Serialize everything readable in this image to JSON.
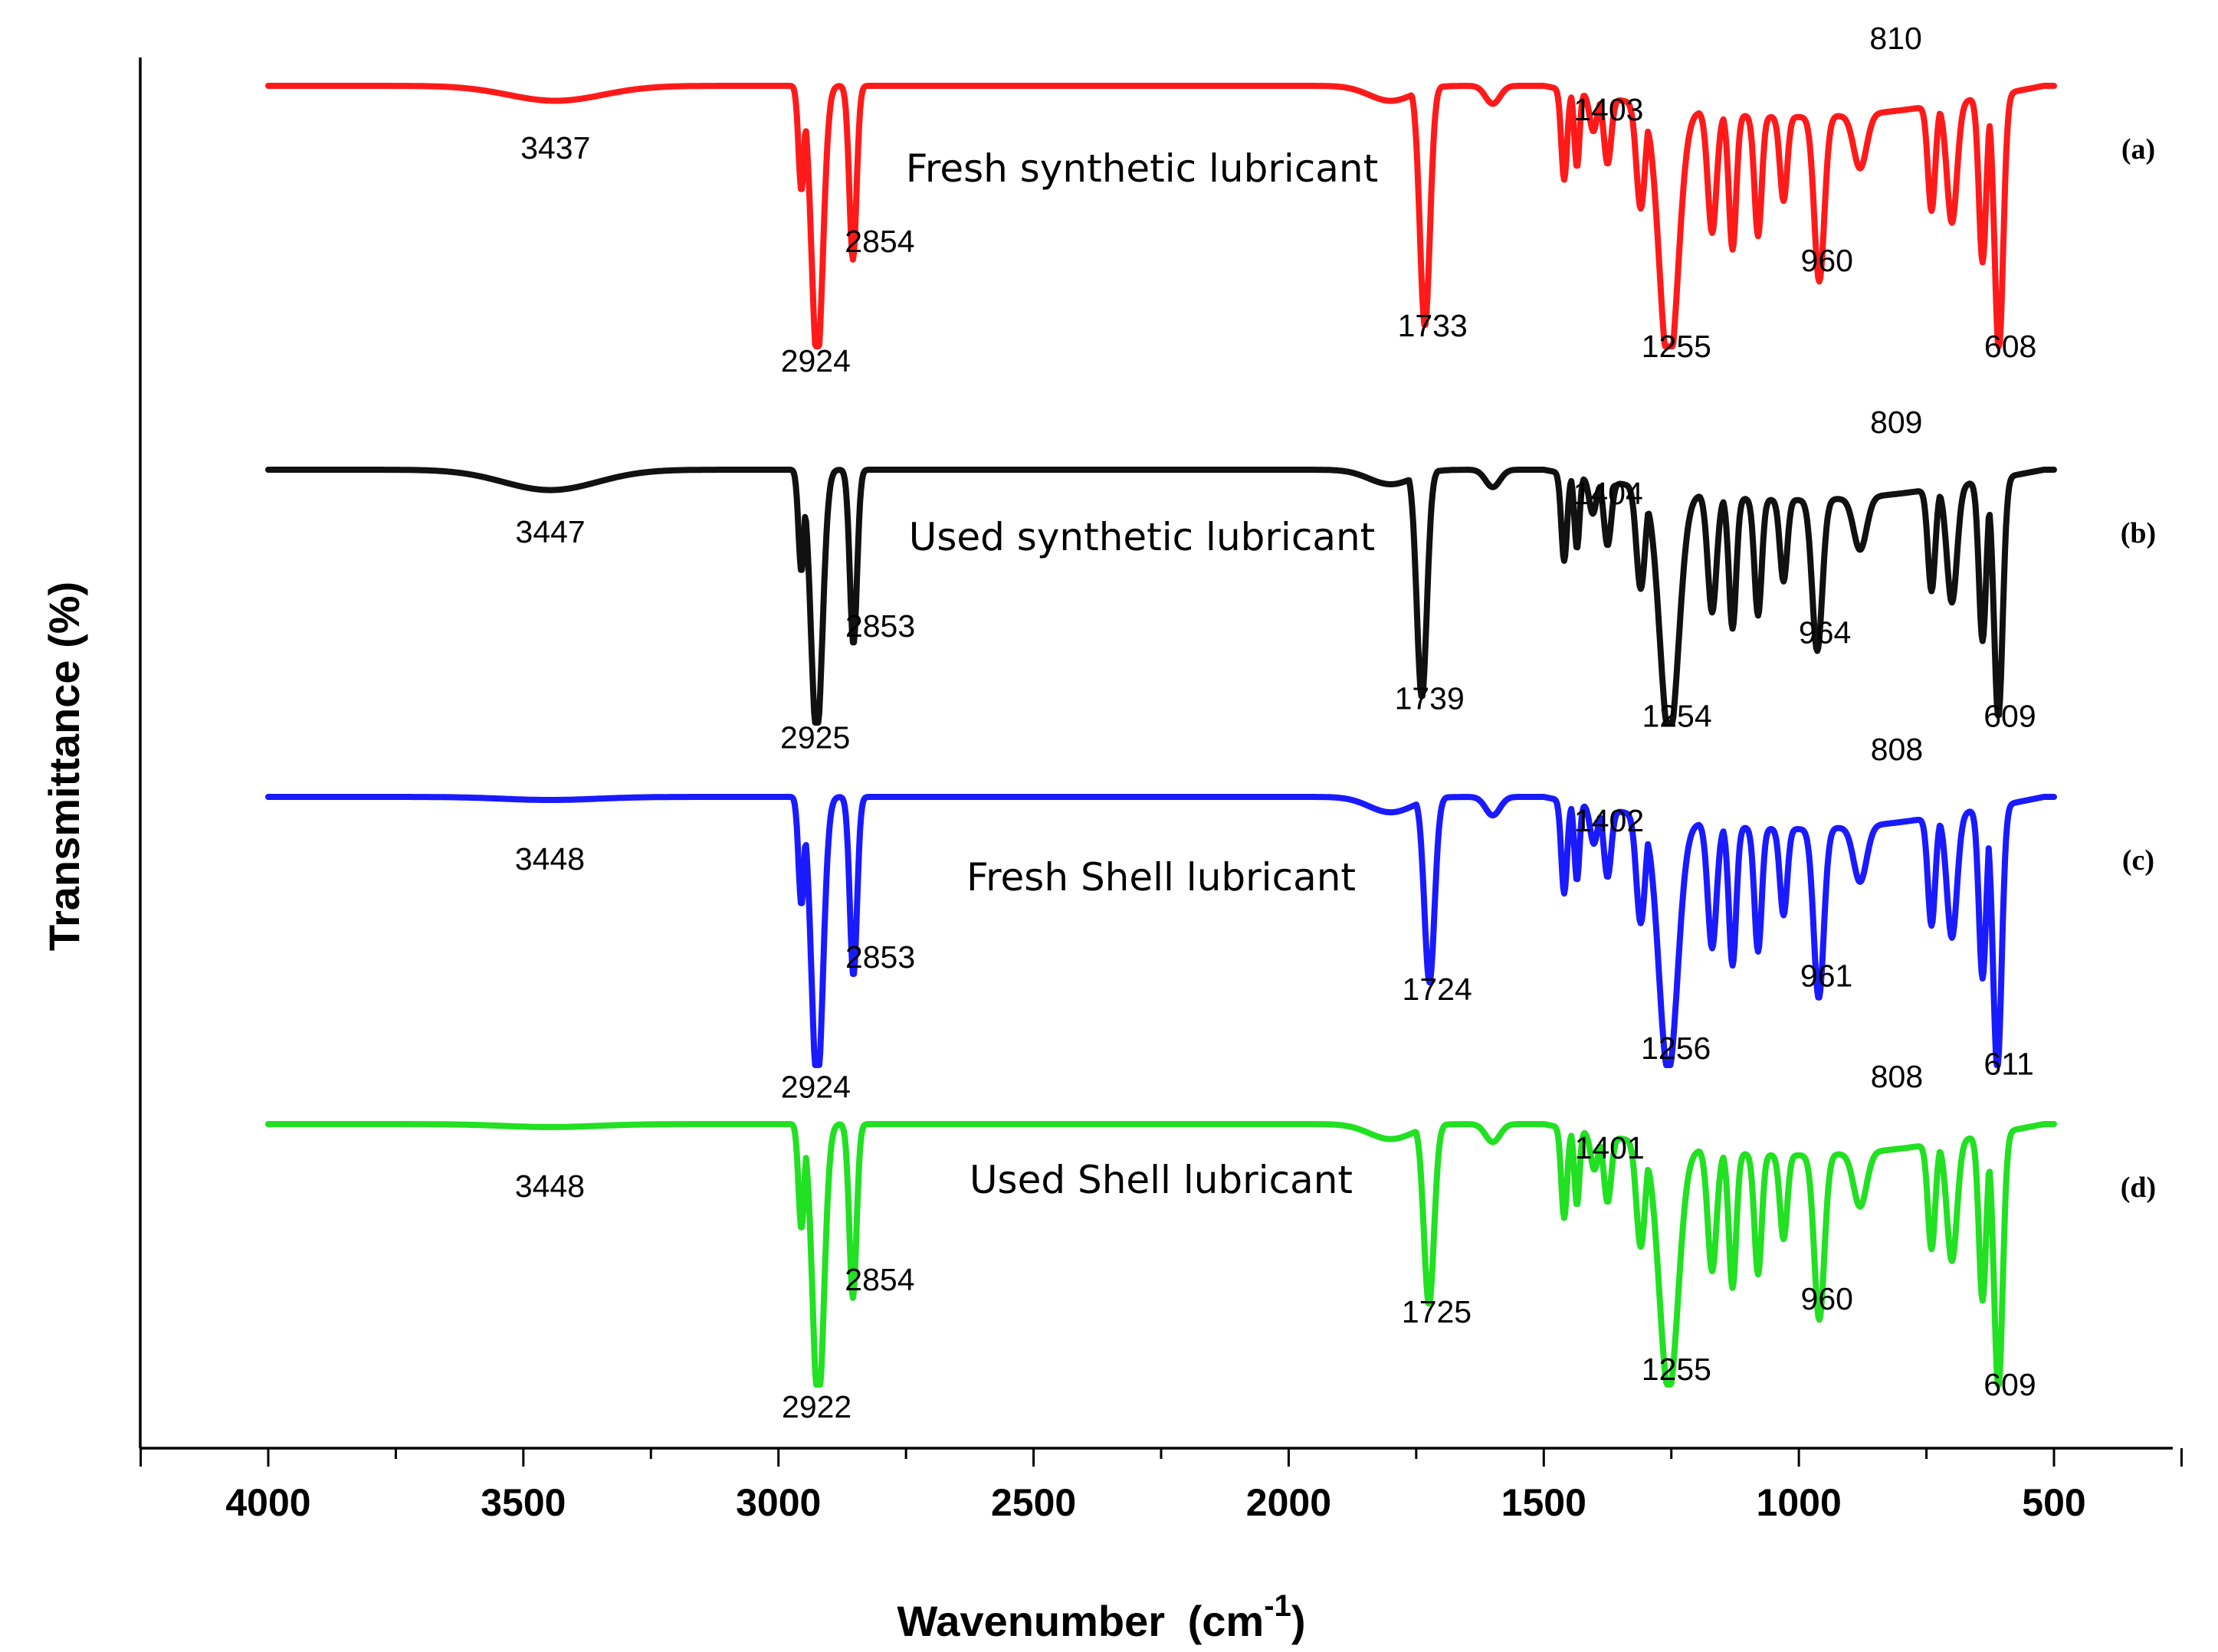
{
  "chart_data": {
    "type": "line",
    "xlabel": "Wavenumber",
    "xlabel_unit_base": "(cm",
    "xlabel_unit_exp": "-1",
    "xlabel_unit_close": ")",
    "ylabel": "Transmittance (%)",
    "xlim": [
      4250,
      250
    ],
    "x_ticks": [
      "4000",
      "3500",
      "3000",
      "2500",
      "2000",
      "1500",
      "1000",
      "500"
    ],
    "grid": false,
    "y_ticks_shown": false,
    "series": [
      {
        "name": "Fresh synthetic lubricant",
        "panel": "(a)",
        "color": "#ff1a1a",
        "baseline": 0,
        "peaks": [
          {
            "x": 3437,
            "depth": 0.05,
            "width": 130,
            "label": "3437"
          },
          {
            "x": 2924,
            "depth": 0.92,
            "width": 16,
            "label": "2924"
          },
          {
            "x": 2854,
            "depth": 0.58,
            "width": 10,
            "label": "2854"
          },
          {
            "x": 1733,
            "depth": 0.8,
            "width": 14,
            "label": "1733"
          },
          {
            "x": 1403,
            "depth": 0.12,
            "width": 10,
            "label": "1403"
          },
          {
            "x": 1255,
            "depth": 0.88,
            "width": 26,
            "label": "1255"
          },
          {
            "x": 960,
            "depth": 0.55,
            "width": 14,
            "label": "960"
          },
          {
            "x": 810,
            "depth": 0.0,
            "width": 10,
            "label": "810"
          },
          {
            "x": 608,
            "depth": 0.85,
            "width": 12,
            "label": "608"
          }
        ]
      },
      {
        "name": "Used synthetic  lubricant",
        "panel": "(b)",
        "color": "#111111",
        "baseline": 0,
        "peaks": [
          {
            "x": 3447,
            "depth": 0.07,
            "width": 130,
            "label": "3447"
          },
          {
            "x": 2925,
            "depth": 0.92,
            "width": 16,
            "label": "2925"
          },
          {
            "x": 2853,
            "depth": 0.6,
            "width": 10,
            "label": "2853"
          },
          {
            "x": 1739,
            "depth": 0.78,
            "width": 14,
            "label": "1739"
          },
          {
            "x": 1404,
            "depth": 0.12,
            "width": 10,
            "label": "1404"
          },
          {
            "x": 1254,
            "depth": 0.85,
            "width": 26,
            "label": "1254"
          },
          {
            "x": 964,
            "depth": 0.52,
            "width": 14,
            "label": "964"
          },
          {
            "x": 809,
            "depth": 0.0,
            "width": 10,
            "label": "809"
          },
          {
            "x": 609,
            "depth": 0.82,
            "width": 12,
            "label": "609"
          }
        ]
      },
      {
        "name": "Fresh Shell lubricant",
        "panel": "(c)",
        "color": "#1a1aff",
        "baseline": 0,
        "peaks": [
          {
            "x": 3448,
            "depth": 0.01,
            "width": 130,
            "label": "3448"
          },
          {
            "x": 2924,
            "depth": 0.95,
            "width": 16,
            "label": "2924"
          },
          {
            "x": 2853,
            "depth": 0.58,
            "width": 10,
            "label": "2853"
          },
          {
            "x": 1724,
            "depth": 0.6,
            "width": 14,
            "label": "1724"
          },
          {
            "x": 1402,
            "depth": 0.12,
            "width": 10,
            "label": "1402"
          },
          {
            "x": 1256,
            "depth": 0.82,
            "width": 26,
            "label": "1256"
          },
          {
            "x": 961,
            "depth": 0.55,
            "width": 14,
            "label": "961"
          },
          {
            "x": 808,
            "depth": 0.0,
            "width": 10,
            "label": "808"
          },
          {
            "x": 611,
            "depth": 0.85,
            "width": 12,
            "label": "611"
          }
        ]
      },
      {
        "name": "Used Shell lubricant",
        "panel": "(d)",
        "color": "#22e022",
        "baseline": 0,
        "peaks": [
          {
            "x": 3448,
            "depth": 0.01,
            "width": 130,
            "label": "3448"
          },
          {
            "x": 2922,
            "depth": 0.95,
            "width": 16,
            "label": "2922"
          },
          {
            "x": 2854,
            "depth": 0.58,
            "width": 10,
            "label": "2854"
          },
          {
            "x": 1725,
            "depth": 0.6,
            "width": 14,
            "label": "1725"
          },
          {
            "x": 1401,
            "depth": 0.12,
            "width": 10,
            "label": "1401"
          },
          {
            "x": 1255,
            "depth": 0.82,
            "width": 26,
            "label": "1255"
          },
          {
            "x": 960,
            "depth": 0.55,
            "width": 14,
            "label": "960"
          },
          {
            "x": 808,
            "depth": 0.0,
            "width": 10,
            "label": "808"
          },
          {
            "x": 609,
            "depth": 0.85,
            "width": 12,
            "label": "609"
          }
        ]
      }
    ]
  }
}
